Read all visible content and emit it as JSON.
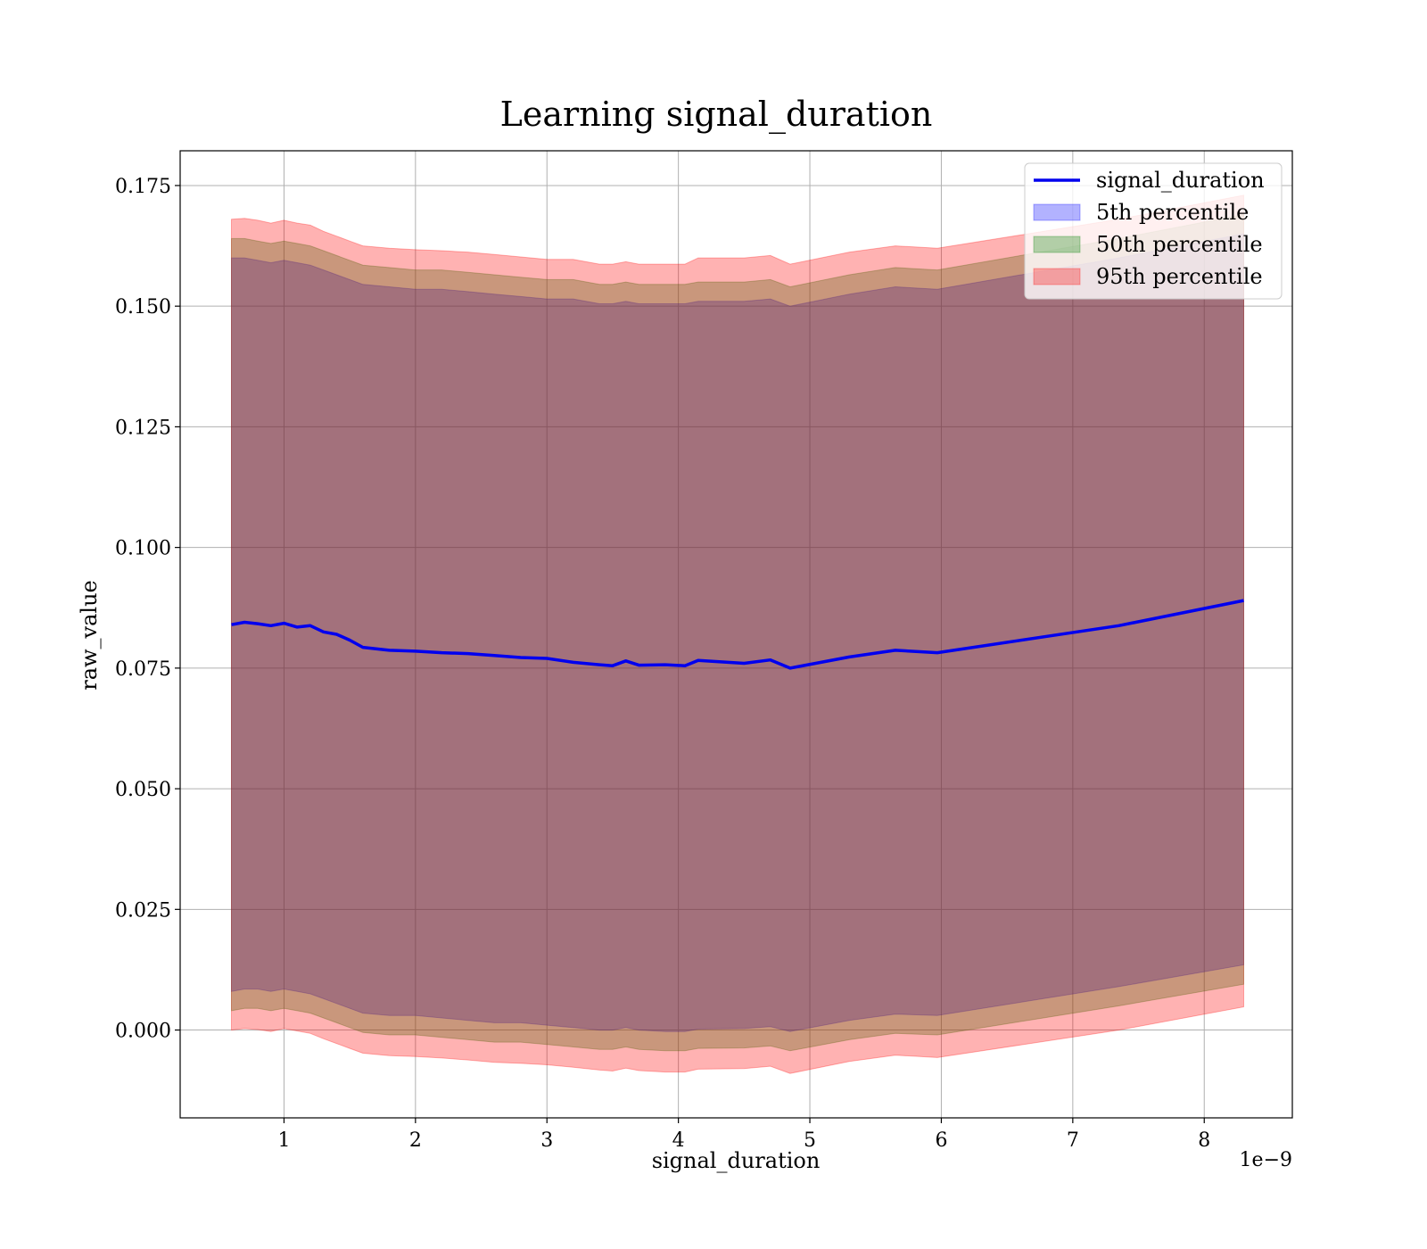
{
  "chart_data": {
    "type": "area",
    "title": "Learning signal_duration",
    "xlabel": "signal_duration",
    "ylabel": "raw_value",
    "x_offset_text": "1e−9",
    "xlim": [
      0.21,
      8.67
    ],
    "ylim": [
      -0.0182,
      0.1822
    ],
    "grid": true,
    "legend_position": "top-right",
    "x_ticks": [
      1,
      2,
      3,
      4,
      5,
      6,
      7,
      8
    ],
    "x_tick_labels": [
      "1",
      "2",
      "3",
      "4",
      "5",
      "6",
      "7",
      "8"
    ],
    "y_ticks": [
      0.0,
      0.025,
      0.05,
      0.075,
      0.1,
      0.125,
      0.15,
      0.175
    ],
    "y_tick_labels": [
      "0.000",
      "0.025",
      "0.050",
      "0.075",
      "0.100",
      "0.125",
      "0.150",
      "0.175"
    ],
    "x": [
      0.6,
      0.7,
      0.8,
      0.9,
      1.0,
      1.1,
      1.2,
      1.3,
      1.4,
      1.5,
      1.6,
      1.8,
      2.0,
      2.2,
      2.4,
      2.6,
      2.8,
      3.0,
      3.2,
      3.4,
      3.5,
      3.6,
      3.7,
      3.9,
      4.05,
      4.15,
      4.5,
      4.7,
      4.85,
      5.3,
      5.65,
      5.97,
      7.35,
      8.3
    ],
    "series": [
      {
        "name": "signal_duration",
        "kind": "line",
        "color": "#0000ee",
        "values": [
          0.084,
          0.0845,
          0.0842,
          0.0838,
          0.0843,
          0.0835,
          0.0838,
          0.0825,
          0.082,
          0.0808,
          0.0793,
          0.0787,
          0.0785,
          0.0782,
          0.078,
          0.0776,
          0.0772,
          0.077,
          0.0762,
          0.0757,
          0.0755,
          0.0765,
          0.0756,
          0.0757,
          0.0755,
          0.0766,
          0.076,
          0.0767,
          0.075,
          0.0773,
          0.0787,
          0.0782,
          0.0838,
          0.089
        ]
      },
      {
        "name": "5th percentile",
        "kind": "band",
        "color": "#0000ff",
        "upper": [
          0.16,
          0.16,
          0.1595,
          0.159,
          0.1595,
          0.159,
          0.1585,
          0.1575,
          0.1565,
          0.1555,
          0.1545,
          0.154,
          0.1535,
          0.1535,
          0.153,
          0.1525,
          0.152,
          0.1515,
          0.1515,
          0.1505,
          0.1505,
          0.151,
          0.1505,
          0.1505,
          0.1505,
          0.151,
          0.151,
          0.1515,
          0.15,
          0.1525,
          0.154,
          0.1535,
          0.16,
          0.165
        ],
        "lower": [
          0.008,
          0.0085,
          0.0085,
          0.008,
          0.0085,
          0.008,
          0.0075,
          0.0065,
          0.0055,
          0.0045,
          0.0035,
          0.003,
          0.003,
          0.0025,
          0.002,
          0.0015,
          0.0015,
          0.001,
          0.0005,
          0.0,
          0.0,
          0.0005,
          0.0,
          -0.0003,
          -0.0003,
          0.0002,
          0.0003,
          0.0007,
          -0.0003,
          0.002,
          0.0033,
          0.003,
          0.009,
          0.0135
        ]
      },
      {
        "name": "50th percentile",
        "kind": "band",
        "color": "#008000",
        "upper": [
          0.164,
          0.164,
          0.1635,
          0.163,
          0.1635,
          0.163,
          0.1625,
          0.1615,
          0.1605,
          0.1595,
          0.1585,
          0.158,
          0.1575,
          0.1575,
          0.157,
          0.1565,
          0.156,
          0.1555,
          0.1555,
          0.1545,
          0.1545,
          0.155,
          0.1545,
          0.1545,
          0.1545,
          0.155,
          0.155,
          0.1555,
          0.154,
          0.1565,
          0.158,
          0.1575,
          0.164,
          0.169
        ],
        "lower": [
          0.004,
          0.0045,
          0.0045,
          0.004,
          0.0045,
          0.004,
          0.0035,
          0.0025,
          0.0015,
          0.0005,
          -0.0005,
          -0.001,
          -0.001,
          -0.0015,
          -0.002,
          -0.0025,
          -0.0025,
          -0.003,
          -0.0035,
          -0.004,
          -0.004,
          -0.0035,
          -0.004,
          -0.0043,
          -0.0043,
          -0.0038,
          -0.0037,
          -0.0033,
          -0.0043,
          -0.002,
          -0.0007,
          -0.001,
          0.005,
          0.0095
        ]
      },
      {
        "name": "95th percentile",
        "kind": "band",
        "color": "#ff0000",
        "upper": [
          0.168,
          0.1682,
          0.1678,
          0.1672,
          0.1678,
          0.1672,
          0.1668,
          0.1655,
          0.1645,
          0.1635,
          0.1625,
          0.162,
          0.1617,
          0.1615,
          0.1612,
          0.1607,
          0.1602,
          0.1597,
          0.1597,
          0.1587,
          0.1587,
          0.1592,
          0.1587,
          0.1587,
          0.1587,
          0.16,
          0.16,
          0.1605,
          0.1587,
          0.1612,
          0.1625,
          0.162,
          0.168,
          0.173
        ],
        "lower": [
          0.0,
          0.0003,
          0.0001,
          -0.0003,
          0.0003,
          -0.0002,
          -0.0007,
          -0.0018,
          -0.0028,
          -0.0038,
          -0.0048,
          -0.0053,
          -0.0055,
          -0.0058,
          -0.0062,
          -0.0067,
          -0.0069,
          -0.0072,
          -0.0077,
          -0.0083,
          -0.0085,
          -0.0079,
          -0.0084,
          -0.0087,
          -0.0087,
          -0.0081,
          -0.008,
          -0.0075,
          -0.009,
          -0.0065,
          -0.0052,
          -0.0057,
          0.0,
          0.0048
        ]
      }
    ]
  }
}
